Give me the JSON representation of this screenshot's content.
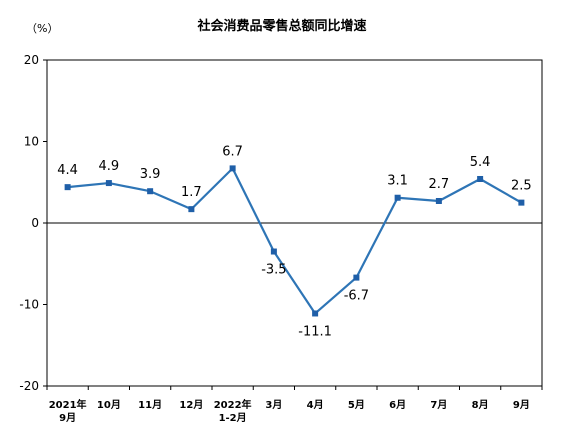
{
  "chart_data": {
    "type": "line",
    "title": "社会消费品零售总额同比增速",
    "unit": "（%）",
    "categories": [
      [
        "2021年",
        "9月"
      ],
      [
        "10月"
      ],
      [
        "11月"
      ],
      [
        "12月"
      ],
      [
        "2022年",
        "1-2月"
      ],
      [
        "3月"
      ],
      [
        "4月"
      ],
      [
        "5月"
      ],
      [
        "6月"
      ],
      [
        "7月"
      ],
      [
        "8月"
      ],
      [
        "9月"
      ]
    ],
    "series": [
      {
        "values": [
          4.4,
          4.9,
          3.9,
          1.7,
          6.7,
          -3.5,
          -11.1,
          -6.7,
          3.1,
          2.7,
          5.4,
          2.5
        ]
      }
    ],
    "data_labels": [
      "4.4",
      "4.9",
      "3.9",
      "1.7",
      "6.7",
      "-3.5",
      "-11.1",
      "-6.7",
      "3.1",
      "2.7",
      "5.4",
      "2.5"
    ],
    "label_position": [
      "above",
      "above",
      "above",
      "above",
      "above",
      "below",
      "below",
      "below",
      "above",
      "above",
      "above",
      "above"
    ],
    "ylim": [
      -20,
      20
    ],
    "yticks": [
      20,
      10,
      0,
      -10,
      -20
    ],
    "grid": false,
    "line_color": "#2E75B6",
    "marker_color": "#1F5FA8"
  }
}
